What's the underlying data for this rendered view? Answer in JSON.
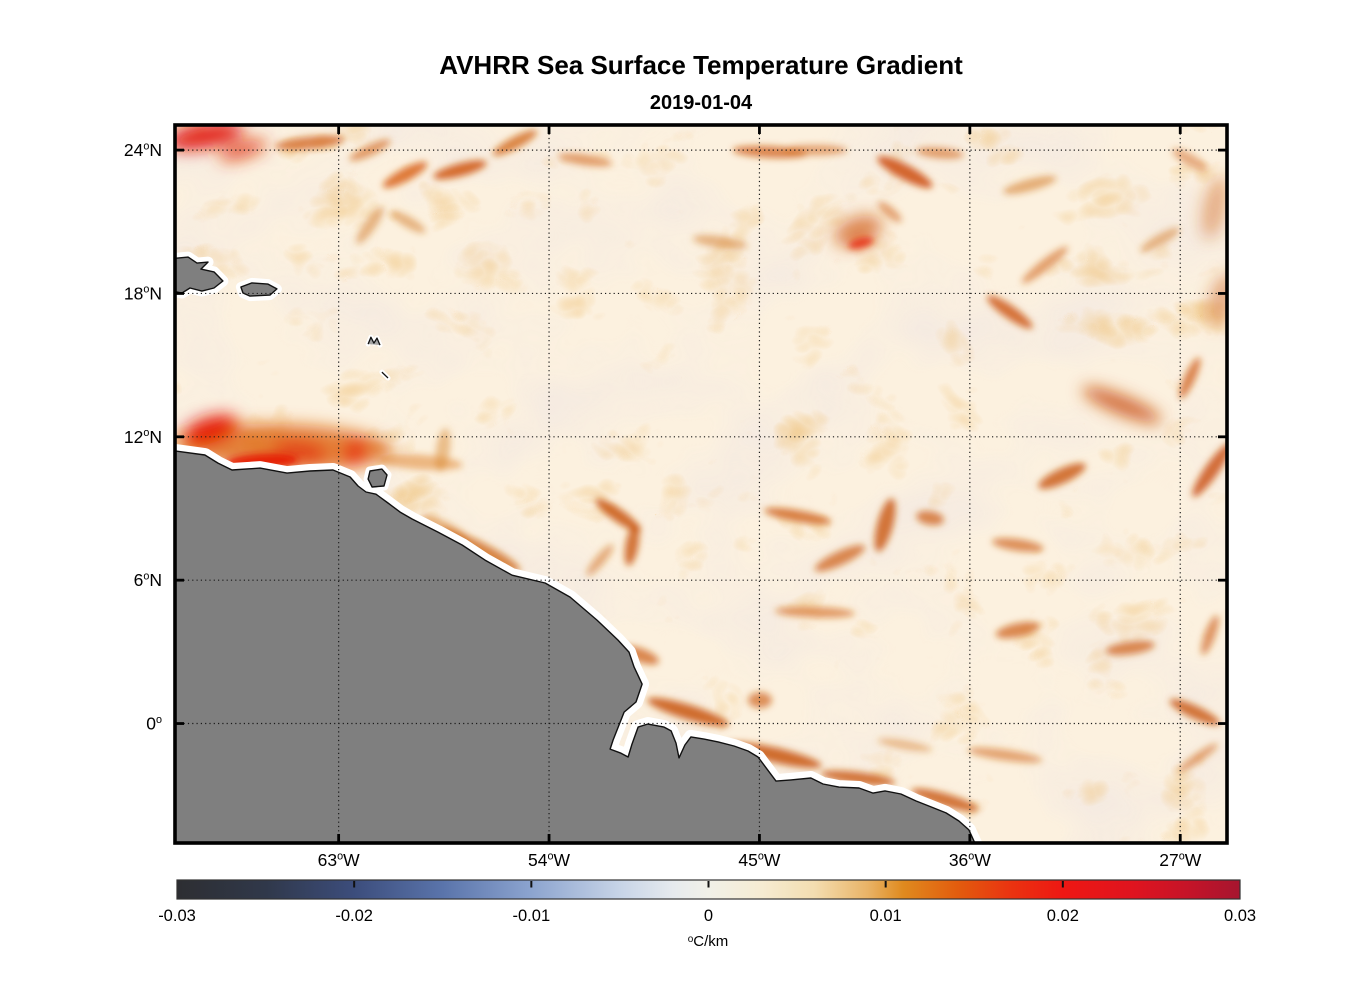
{
  "figure": {
    "background": "#ffffff"
  },
  "chart_data": {
    "type": "heatmap",
    "title": "AVHRR Sea Surface Temperature Gradient",
    "subtitle": "2019-01-04",
    "degree_symbol": "o",
    "projection": {
      "lon_min": -70.0,
      "lon_max": -25.0,
      "lat_min": -5.0,
      "lat_max": 25.05
    },
    "x_ticks": [
      {
        "lon": -63,
        "num": "63",
        "hem": "W"
      },
      {
        "lon": -54,
        "num": "54",
        "hem": "W"
      },
      {
        "lon": -45,
        "num": "45",
        "hem": "W"
      },
      {
        "lon": -36,
        "num": "36",
        "hem": "W"
      },
      {
        "lon": -27,
        "num": "27",
        "hem": "W"
      }
    ],
    "y_ticks": [
      {
        "lat": 24,
        "num": "24",
        "hem": "N"
      },
      {
        "lat": 18,
        "num": "18",
        "hem": "N"
      },
      {
        "lat": 12,
        "num": "12",
        "hem": "N"
      },
      {
        "lat": 6,
        "num": "6",
        "hem": "N"
      },
      {
        "lat": 0,
        "num": "0",
        "hem": ""
      }
    ],
    "grid": {
      "style": "dotted",
      "color": "#1a1a1a"
    },
    "ocean": {
      "base": "#fcf1df",
      "marble_color": "#c7b5ca",
      "vein_color": "#d67c1f"
    },
    "land": {
      "fill": "#7f7f7f",
      "outline": "#111111",
      "coast_buffer": "#ffffff",
      "polygons": {
        "south_america": [
          [
            -70.3,
            11.45
          ],
          [
            -68.72,
            11.24
          ],
          [
            -68.16,
            10.9
          ],
          [
            -67.56,
            10.61
          ],
          [
            -66.36,
            10.69
          ],
          [
            -65.21,
            10.48
          ],
          [
            -64.23,
            10.57
          ],
          [
            -63.24,
            10.61
          ],
          [
            -62.51,
            10.32
          ],
          [
            -62.17,
            9.94
          ],
          [
            -61.83,
            9.69
          ],
          [
            -61.4,
            9.6
          ],
          [
            -60.89,
            9.23
          ],
          [
            -60.37,
            8.85
          ],
          [
            -59.86,
            8.56
          ],
          [
            -58.75,
            8.01
          ],
          [
            -57.72,
            7.47
          ],
          [
            -56.74,
            6.84
          ],
          [
            -55.58,
            6.21
          ],
          [
            -54.17,
            5.88
          ],
          [
            -53.1,
            5.29
          ],
          [
            -51.95,
            4.33
          ],
          [
            -51.05,
            3.49
          ],
          [
            -50.58,
            2.99
          ],
          [
            -50.36,
            2.36
          ],
          [
            -50.02,
            1.65
          ],
          [
            -50.28,
            0.9
          ],
          [
            -50.79,
            0.48
          ],
          [
            -51.26,
            -0.69
          ],
          [
            -51.39,
            -1.07
          ],
          [
            -50.92,
            -1.24
          ],
          [
            -50.62,
            -1.4
          ],
          [
            -50.45,
            -0.86
          ],
          [
            -50.19,
            -0.15
          ],
          [
            -49.77,
            -0.02
          ],
          [
            -49.08,
            -0.15
          ],
          [
            -48.78,
            -0.31
          ],
          [
            -48.57,
            -0.82
          ],
          [
            -48.44,
            -1.44
          ],
          [
            -48.19,
            -0.9
          ],
          [
            -47.93,
            -0.56
          ],
          [
            -47.37,
            -0.65
          ],
          [
            -46.77,
            -0.77
          ],
          [
            -46.09,
            -0.94
          ],
          [
            -45.49,
            -1.15
          ],
          [
            -45.06,
            -1.4
          ],
          [
            -44.68,
            -1.9
          ],
          [
            -44.29,
            -2.41
          ],
          [
            -43.65,
            -2.36
          ],
          [
            -42.8,
            -2.28
          ],
          [
            -42.28,
            -2.53
          ],
          [
            -41.6,
            -2.66
          ],
          [
            -40.74,
            -2.7
          ],
          [
            -40.14,
            -2.91
          ],
          [
            -39.63,
            -2.82
          ],
          [
            -38.95,
            -2.95
          ],
          [
            -38.31,
            -3.24
          ],
          [
            -37.66,
            -3.49
          ],
          [
            -37.02,
            -3.74
          ],
          [
            -36.47,
            -4.08
          ],
          [
            -36.04,
            -4.45
          ],
          [
            -35.6,
            -5.4
          ],
          [
            -70.3,
            -5.4
          ]
        ],
        "hispaniola": [
          [
            -70.3,
            19.44
          ],
          [
            -69.44,
            19.52
          ],
          [
            -69.06,
            19.27
          ],
          [
            -68.59,
            19.31
          ],
          [
            -68.89,
            19.02
          ],
          [
            -68.33,
            18.9
          ],
          [
            -67.95,
            18.52
          ],
          [
            -68.33,
            18.23
          ],
          [
            -68.85,
            18.1
          ],
          [
            -69.36,
            18.23
          ],
          [
            -69.7,
            18.02
          ],
          [
            -70.3,
            18.14
          ]
        ],
        "puerto_rico": [
          [
            -67.18,
            18.27
          ],
          [
            -66.71,
            18.44
          ],
          [
            -66.02,
            18.39
          ],
          [
            -65.64,
            18.19
          ],
          [
            -65.94,
            17.93
          ],
          [
            -66.79,
            17.89
          ],
          [
            -67.09,
            18.02
          ]
        ],
        "trinidad": [
          [
            -61.66,
            10.57
          ],
          [
            -61.15,
            10.65
          ],
          [
            -60.93,
            10.4
          ],
          [
            -61.06,
            9.94
          ],
          [
            -61.57,
            9.9
          ],
          [
            -61.74,
            10.23
          ]
        ]
      },
      "island_marks": [
        [
          [
            -61.74,
            15.88
          ],
          [
            -61.62,
            16.17
          ],
          [
            -61.49,
            15.92
          ],
          [
            -61.36,
            16.13
          ],
          [
            -61.23,
            15.84
          ]
        ],
        [
          [
            -61.15,
            14.71
          ],
          [
            -60.89,
            14.46
          ]
        ]
      ]
    },
    "colorbar": {
      "min": -0.03,
      "max": 0.03,
      "tick_values": [
        -0.03,
        -0.02,
        -0.01,
        0,
        0.01,
        0.02,
        0.03
      ],
      "tick_labels": [
        "-0.03",
        "-0.02",
        "-0.01",
        "0",
        "0.01",
        "0.02",
        "0.03"
      ],
      "inner_tick_values": [
        -0.02,
        -0.01,
        0,
        0.01,
        0.02
      ],
      "unit_sup": "o",
      "unit": "C/km",
      "stops": [
        [
          -0.03,
          "#2d2e32"
        ],
        [
          -0.025,
          "#30384a"
        ],
        [
          -0.02,
          "#3c4d7c"
        ],
        [
          -0.015,
          "#5a74ab"
        ],
        [
          -0.01,
          "#8ca4cf"
        ],
        [
          -0.005,
          "#c7d4e7"
        ],
        [
          -0.002,
          "#e6eaee"
        ],
        [
          0,
          "#f1f1e8"
        ],
        [
          0.003,
          "#f6ecd2"
        ],
        [
          0.006,
          "#f3ddb0"
        ],
        [
          0.009,
          "#e9b366"
        ],
        [
          0.011,
          "#e08a1e"
        ],
        [
          0.014,
          "#e25d0e"
        ],
        [
          0.017,
          "#ea3410"
        ],
        [
          0.02,
          "#ee1713"
        ],
        [
          0.024,
          "#df141f"
        ],
        [
          0.027,
          "#c61428"
        ],
        [
          0.03,
          "#a6152f"
        ]
      ]
    },
    "feature_fields": [
      "lon",
      "lat",
      "width_px",
      "height_px",
      "rotation_deg",
      "color",
      "opacity",
      "layer_s_soft_f_filament"
    ],
    "features": [
      [
        -68.72,
        24.59,
        78,
        24,
        -10,
        "#e01408",
        0.95,
        "s"
      ],
      [
        -67.09,
        24.0,
        50,
        16,
        -18,
        "#e03a0e",
        0.8,
        "s"
      ],
      [
        -64.23,
        24.3,
        70,
        13,
        -6,
        "#cf5a10",
        0.7,
        "f"
      ],
      [
        -61.66,
        24.0,
        45,
        11,
        -25,
        "#d06414",
        0.6,
        "f"
      ],
      [
        -60.16,
        22.96,
        50,
        13,
        -28,
        "#d75c10",
        0.8,
        "f"
      ],
      [
        -57.81,
        23.17,
        55,
        13,
        -15,
        "#cf5510",
        0.85,
        "f"
      ],
      [
        -55.46,
        24.3,
        50,
        12,
        -28,
        "#d06414",
        0.75,
        "f"
      ],
      [
        -52.46,
        23.59,
        55,
        11,
        8,
        "#d2691e",
        0.6,
        "f"
      ],
      [
        -61.66,
        20.86,
        45,
        12,
        -55,
        "#d2781e",
        0.5,
        "f"
      ],
      [
        -60.03,
        20.99,
        40,
        11,
        30,
        "#d2781e",
        0.5,
        "f"
      ],
      [
        -44.55,
        23.92,
        75,
        12,
        3,
        "#cf5a10",
        0.7,
        "f"
      ],
      [
        -42.63,
        24.0,
        65,
        11,
        0,
        "#d2691e",
        0.55,
        "f"
      ],
      [
        -38.78,
        23.08,
        62,
        15,
        28,
        "#cc4e0c",
        0.85,
        "f"
      ],
      [
        -37.28,
        23.88,
        48,
        11,
        5,
        "#d2691e",
        0.6,
        "f"
      ],
      [
        -39.42,
        21.41,
        30,
        10,
        40,
        "#d2691e",
        0.55,
        "f"
      ],
      [
        -40.78,
        20.61,
        50,
        28,
        -20,
        "#d05a10",
        0.7,
        "s"
      ],
      [
        -40.66,
        20.11,
        26,
        11,
        -15,
        "#e62e0a",
        0.85,
        "f"
      ],
      [
        -46.68,
        20.15,
        55,
        12,
        8,
        "#d2781e",
        0.5,
        "f"
      ],
      [
        -33.43,
        22.54,
        55,
        12,
        -15,
        "#d2781e",
        0.55,
        "f"
      ],
      [
        -27.87,
        20.24,
        45,
        11,
        -30,
        "#d2781e",
        0.5,
        "f"
      ],
      [
        -26.59,
        23.59,
        40,
        12,
        30,
        "#d2691e",
        0.5,
        "f"
      ],
      [
        -32.79,
        19.19,
        58,
        11,
        -38,
        "#d2691e",
        0.6,
        "f"
      ],
      [
        -25.52,
        21.62,
        22,
        65,
        12,
        "#d2691e",
        0.5,
        "s"
      ],
      [
        -34.29,
        17.22,
        55,
        13,
        35,
        "#cc5410",
        0.8,
        "f"
      ],
      [
        -29.5,
        13.33,
        85,
        18,
        22,
        "#c84e0e",
        0.85,
        "s"
      ],
      [
        -26.59,
        14.46,
        45,
        11,
        -65,
        "#cf5a10",
        0.7,
        "f"
      ],
      [
        -25.65,
        10.61,
        65,
        14,
        -55,
        "#c84e0e",
        0.8,
        "f"
      ],
      [
        -25.22,
        17.73,
        25,
        55,
        15,
        "#d2691e",
        0.5,
        "s"
      ],
      [
        -65.3,
        11.57,
        215,
        46,
        2,
        "#dd6414",
        0.8,
        "s"
      ],
      [
        -68.5,
        12.28,
        58,
        26,
        -18,
        "#e51404",
        0.95,
        "s"
      ],
      [
        -66.28,
        10.98,
        72,
        15,
        -3,
        "#e51404",
        0.9,
        "f"
      ],
      [
        -64.65,
        11.36,
        55,
        20,
        6,
        "#e33008",
        0.8,
        "s"
      ],
      [
        -62.3,
        11.36,
        28,
        20,
        -70,
        "#e8280a",
        0.9,
        "s"
      ],
      [
        -59.52,
        10.94,
        85,
        15,
        4,
        "#dd7d22",
        0.5,
        "f"
      ],
      [
        -58.54,
        11.45,
        14,
        44,
        8,
        "#d98a30",
        0.5,
        "f"
      ],
      [
        -58.45,
        8.18,
        55,
        12,
        27,
        "#d57a20",
        0.55,
        "f"
      ],
      [
        -56.95,
        7.26,
        90,
        16,
        27,
        "#cc6414",
        0.75,
        "f"
      ],
      [
        -51.05,
        8.72,
        55,
        13,
        35,
        "#c85510",
        0.85,
        "f"
      ],
      [
        -50.45,
        7.47,
        13,
        42,
        10,
        "#c85510",
        0.8,
        "f"
      ],
      [
        -51.82,
        6.84,
        40,
        10,
        -50,
        "#cf6a18",
        0.5,
        "f"
      ],
      [
        -54.17,
        4.75,
        50,
        10,
        10,
        "#d57a20",
        0.45,
        "f"
      ],
      [
        -50.11,
        2.86,
        40,
        14,
        20,
        "#cc5c12",
        0.7,
        "f"
      ],
      [
        -48.06,
        0.48,
        85,
        15,
        17,
        "#c85510",
        0.85,
        "f"
      ],
      [
        -44.33,
        -1.32,
        95,
        15,
        13,
        "#c85510",
        0.85,
        "f"
      ],
      [
        -40.78,
        -2.28,
        75,
        12,
        7,
        "#c85510",
        0.8,
        "f"
      ],
      [
        -37.06,
        -3.2,
        70,
        13,
        16,
        "#c85510",
        0.8,
        "f"
      ],
      [
        -38.78,
        -0.9,
        55,
        9,
        10,
        "#d57a20",
        0.45,
        "f"
      ],
      [
        -44.98,
        0.98,
        24,
        16,
        0,
        "#cc5c12",
        0.65,
        "f"
      ],
      [
        -43.36,
        8.68,
        68,
        12,
        10,
        "#cc5c12",
        0.75,
        "f"
      ],
      [
        -39.63,
        8.31,
        16,
        55,
        15,
        "#c85510",
        0.8,
        "f"
      ],
      [
        -41.56,
        6.92,
        55,
        14,
        -25,
        "#cc5c12",
        0.7,
        "f"
      ],
      [
        -37.7,
        8.6,
        28,
        14,
        10,
        "#cc5c12",
        0.7,
        "f"
      ],
      [
        -42.63,
        4.66,
        80,
        11,
        2,
        "#d06418",
        0.6,
        "f"
      ],
      [
        -32.06,
        10.36,
        52,
        15,
        -25,
        "#c85510",
        0.8,
        "f"
      ],
      [
        -33.95,
        7.47,
        52,
        12,
        8,
        "#cc5c12",
        0.65,
        "f"
      ],
      [
        -33.95,
        3.91,
        45,
        14,
        -12,
        "#cc5c12",
        0.7,
        "f"
      ],
      [
        -29.15,
        3.16,
        50,
        13,
        -8,
        "#cc5c12",
        0.7,
        "f"
      ],
      [
        -26.38,
        0.48,
        55,
        13,
        25,
        "#c85510",
        0.8,
        "f"
      ],
      [
        -25.73,
        3.7,
        42,
        11,
        -70,
        "#cc5c12",
        0.6,
        "f"
      ],
      [
        -26.25,
        -1.44,
        48,
        9,
        -35,
        "#d06418",
        0.55,
        "f"
      ],
      [
        -34.5,
        -1.32,
        75,
        11,
        8,
        "#d06418",
        0.55,
        "f"
      ]
    ]
  }
}
